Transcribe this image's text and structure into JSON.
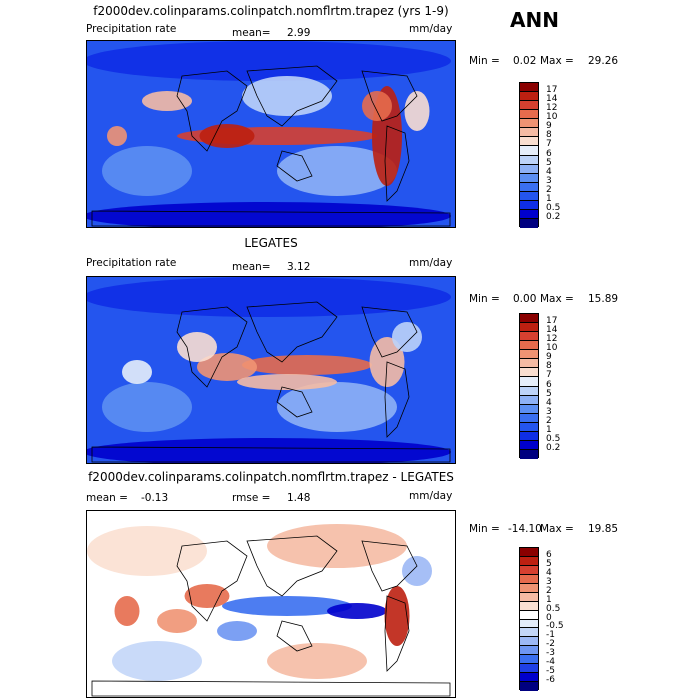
{
  "season": "ANN",
  "colors": {
    "precip": [
      "#000080",
      "#0000cc",
      "#0f2ee6",
      "#2455ee",
      "#3a6ff0",
      "#5c8ff2",
      "#8eb1f5",
      "#bdd3f8",
      "#e6eefa",
      "#f9ded0",
      "#f5bba4",
      "#ef9373",
      "#e66b4d",
      "#d64030",
      "#bd2011",
      "#8a0000"
    ],
    "diff": [
      "#000080",
      "#0000cc",
      "#1f40e6",
      "#3a6ff0",
      "#6e96f2",
      "#9cb8f5",
      "#c3d6f8",
      "#e3ecfa",
      "#ffffff",
      "#fbe0d2",
      "#f5bba4",
      "#ef9373",
      "#e66b4d",
      "#d64030",
      "#bd2011",
      "#8a0000"
    ]
  },
  "panels": [
    {
      "title": "f2000dev.colinparams.colinpatch.nomflrtm.trapez (yrs 1-9)",
      "left_label": "Precipitation rate",
      "mid_label": "mean=",
      "mid_value": "2.99",
      "units": "mm/day",
      "min_label": "Min =",
      "min_value": "0.02",
      "max_label": "Max =",
      "max_value": "29.26",
      "palette": "precip",
      "levels": [
        "17",
        "14",
        "12",
        "10",
        "9",
        "8",
        "7",
        "6",
        "5",
        "4",
        "3",
        "2",
        "1",
        "0.5",
        "0.2"
      ]
    },
    {
      "title": "LEGATES",
      "left_label": "Precipitation rate",
      "mid_label": "mean=",
      "mid_value": "3.12",
      "units": "mm/day",
      "min_label": "Min =",
      "min_value": "0.00",
      "max_label": "Max =",
      "max_value": "15.89",
      "palette": "precip",
      "levels": [
        "17",
        "14",
        "12",
        "10",
        "9",
        "8",
        "7",
        "6",
        "5",
        "4",
        "3",
        "2",
        "1",
        "0.5",
        "0.2"
      ]
    },
    {
      "title": "f2000dev.colinparams.colinpatch.nomflrtm.trapez - LEGATES",
      "left_label": "mean =",
      "left_value": "-0.13",
      "mid_label": "rmse =",
      "mid_value": "1.48",
      "units": "mm/day",
      "min_label": "Min =",
      "min_value": "-14.10",
      "max_label": "Max =",
      "max_value": "19.85",
      "palette": "diff",
      "levels": [
        "6",
        "5",
        "4",
        "3",
        "2",
        "1",
        "0.5",
        "0",
        "-0.5",
        "-1",
        "-2",
        "-3",
        "-4",
        "-5",
        "-6"
      ]
    }
  ],
  "chart_data": [
    {
      "type": "heatmap",
      "title": "f2000dev.colinparams.colinpatch.nomflrtm.trapez (yrs 1-9)",
      "variable": "Precipitation rate",
      "units": "mm/day",
      "mean": 2.99,
      "min": 0.02,
      "max": 29.26,
      "contour_levels": [
        0.2,
        0.5,
        1,
        2,
        3,
        4,
        5,
        6,
        7,
        8,
        9,
        10,
        12,
        14,
        17
      ]
    },
    {
      "type": "heatmap",
      "title": "LEGATES",
      "variable": "Precipitation rate",
      "units": "mm/day",
      "mean": 3.12,
      "min": 0.0,
      "max": 15.89,
      "contour_levels": [
        0.2,
        0.5,
        1,
        2,
        3,
        4,
        5,
        6,
        7,
        8,
        9,
        10,
        12,
        14,
        17
      ]
    },
    {
      "type": "heatmap",
      "title": "f2000dev.colinparams.colinpatch.nomflrtm.trapez - LEGATES",
      "units": "mm/day",
      "mean": -0.13,
      "rmse": 1.48,
      "min": -14.1,
      "max": 19.85,
      "contour_levels": [
        -6,
        -5,
        -4,
        -3,
        -2,
        -1,
        -0.5,
        0,
        0.5,
        1,
        2,
        3,
        4,
        5,
        6
      ]
    }
  ]
}
